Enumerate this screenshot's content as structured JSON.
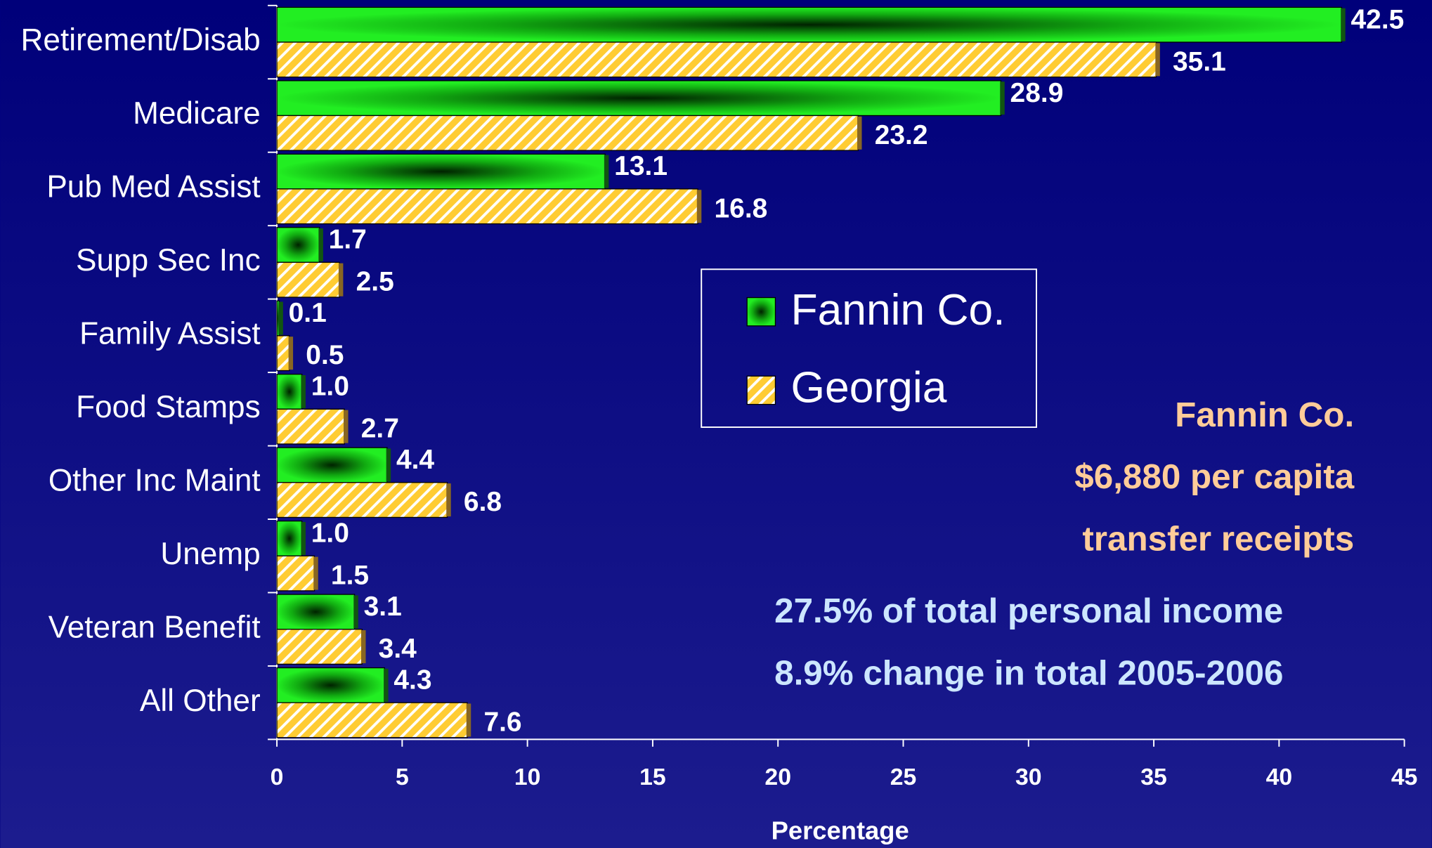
{
  "chart_data": {
    "type": "hbar",
    "categories": [
      "Retirement/Disab",
      "Medicare",
      "Pub Med Assist",
      "Supp Sec Inc",
      "Family Assist",
      "Food Stamps",
      "Other Inc Maint",
      "Unemp",
      "Veteran Benefit",
      "All Other"
    ],
    "series": [
      {
        "name": "Fannin Co.",
        "color": "#00dd00",
        "values": [
          42.5,
          28.9,
          13.1,
          1.7,
          0.1,
          1.0,
          4.4,
          1.0,
          3.1,
          4.3
        ],
        "value_labels": [
          "42.5",
          "28.9",
          "13.1",
          "1.7",
          "0.1",
          "1.0",
          "4.4",
          "1.0",
          "3.1",
          "4.3"
        ]
      },
      {
        "name": "Georgia",
        "color": "#ffcc33",
        "values": [
          35.1,
          23.2,
          16.8,
          2.5,
          0.5,
          2.7,
          6.8,
          1.5,
          3.4,
          7.6
        ],
        "value_labels": [
          "35.1",
          "23.2",
          "16.8",
          "2.5",
          "0.5",
          "2.7",
          "6.8",
          "1.5",
          "3.4",
          "7.6"
        ]
      }
    ],
    "xlabel": "Percentage",
    "xlim": [
      0,
      45
    ],
    "xticks": [
      0,
      5,
      10,
      15,
      20,
      25,
      30,
      35,
      40,
      45
    ],
    "legend": "center",
    "annotations": [
      "Fannin Co.",
      "$6,880 per capita",
      "transfer receipts",
      "27.5% of total personal income",
      "8.9% change in total 2005-2006"
    ]
  }
}
